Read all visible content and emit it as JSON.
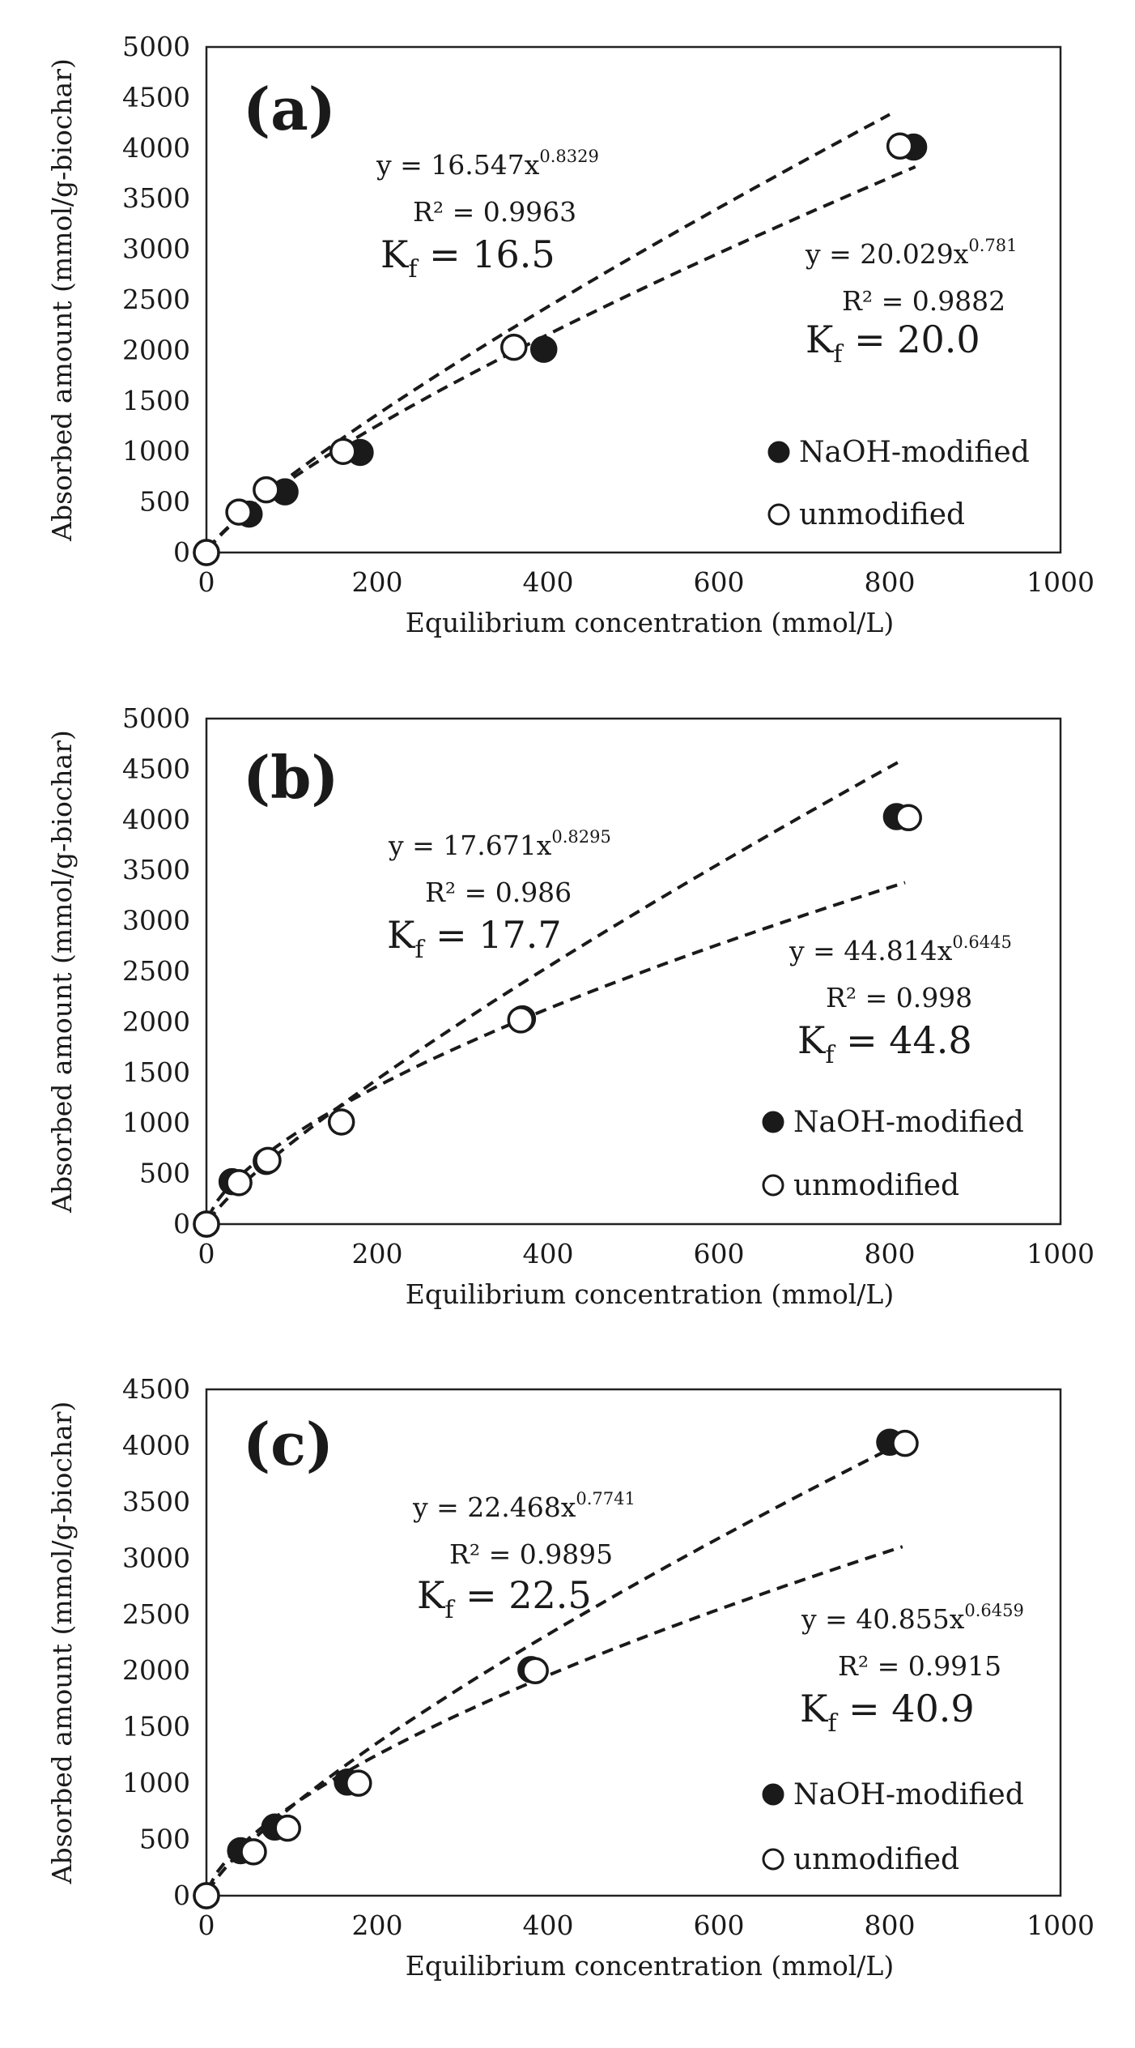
{
  "chart_data": [
    {
      "type": "scatter",
      "panel_label": "(a)",
      "xlabel": "Equilibrium concentration (mmol/L)",
      "ylabel": "Absorbed amount (mmol/g-biochar)",
      "xlim": [
        0,
        1000
      ],
      "ylim": [
        0,
        5000
      ],
      "x_ticks": [
        "0",
        "200",
        "400",
        "600",
        "800",
        "1000"
      ],
      "y_ticks": [
        "0",
        "500",
        "1000",
        "1500",
        "2000",
        "2500",
        "3000",
        "3500",
        "4000",
        "4500",
        "5000"
      ],
      "series": [
        {
          "name": "NaOH-modified",
          "marker": "filled-circle",
          "x": [
            0,
            50,
            92,
            180,
            395,
            828
          ],
          "y": [
            0,
            380,
            600,
            990,
            2010,
            4010
          ]
        },
        {
          "name": "unmodified",
          "marker": "open-circle",
          "x": [
            0,
            38,
            70,
            160,
            360,
            812
          ],
          "y": [
            0,
            400,
            620,
            1000,
            2030,
            4020
          ]
        }
      ],
      "fits": [
        {
          "series": "unmodified",
          "a": 16.547,
          "b": 0.8329,
          "x_range": [
            2,
            800
          ],
          "equation_prefix": "y = 16.547x",
          "exponent": "0.8329",
          "r2": "R² = 0.9963",
          "kf_value": "16.5"
        },
        {
          "series": "NaOH-modified",
          "a": 20.029,
          "b": 0.781,
          "x_range": [
            2,
            830
          ],
          "equation_prefix": "y = 20.029x",
          "exponent": "0.781",
          "r2": "R² = 0.9882",
          "kf_value": "20.0"
        }
      ],
      "legend_position": "bottom-right"
    },
    {
      "type": "scatter",
      "panel_label": "(b)",
      "xlabel": "Equilibrium concentration (mmol/L)",
      "ylabel": "Absorbed amount (mmol/g-biochar)",
      "xlim": [
        0,
        1000
      ],
      "ylim": [
        0,
        5000
      ],
      "x_ticks": [
        "0",
        "200",
        "400",
        "600",
        "800",
        "1000"
      ],
      "y_ticks": [
        "0",
        "500",
        "1000",
        "1500",
        "2000",
        "2500",
        "3000",
        "3500",
        "4000",
        "4500",
        "5000"
      ],
      "series": [
        {
          "name": "NaOH-modified",
          "marker": "filled-circle",
          "x": [
            0,
            30,
            70,
            370,
            808
          ],
          "y": [
            0,
            420,
            620,
            2030,
            4030
          ]
        },
        {
          "name": "unmodified",
          "marker": "open-circle",
          "x": [
            0,
            38,
            72,
            158,
            368,
            822
          ],
          "y": [
            0,
            410,
            630,
            1010,
            2020,
            4020
          ]
        }
      ],
      "fits": [
        {
          "series": "unmodified",
          "a": 17.671,
          "b": 0.8295,
          "x_range": [
            2,
            810
          ],
          "equation_prefix": "y = 17.671x",
          "exponent": "0.8295",
          "r2": "R² = 0.986",
          "kf_value": "17.7"
        },
        {
          "series": "NaOH-modified",
          "a": 44.814,
          "b": 0.6445,
          "x_range": [
            2,
            818
          ],
          "equation_prefix": "y = 44.814x",
          "exponent": "0.6445",
          "r2": "R² = 0.998",
          "kf_value": "44.8"
        }
      ],
      "legend_position": "bottom-right"
    },
    {
      "type": "scatter",
      "panel_label": "(c)",
      "xlabel": "Equilibrium concentration (mmol/L)",
      "ylabel": "Absorbed amount (mmol/g-biochar)",
      "xlim": [
        0,
        1000
      ],
      "ylim": [
        0,
        4500
      ],
      "x_ticks": [
        "0",
        "200",
        "400",
        "600",
        "800",
        "1000"
      ],
      "y_ticks": [
        "0",
        "500",
        "1000",
        "1500",
        "2000",
        "2500",
        "3000",
        "3500",
        "4000",
        "4500"
      ],
      "series": [
        {
          "name": "NaOH-modified",
          "marker": "filled-circle",
          "x": [
            0,
            40,
            80,
            165,
            380,
            800
          ],
          "y": [
            0,
            400,
            610,
            1010,
            2010,
            4030
          ]
        },
        {
          "name": "unmodified",
          "marker": "open-circle",
          "x": [
            0,
            55,
            95,
            178,
            385,
            818
          ],
          "y": [
            0,
            390,
            600,
            1000,
            2000,
            4020
          ]
        }
      ],
      "fits": [
        {
          "series": "unmodified",
          "a": 22.468,
          "b": 0.7741,
          "x_range": [
            2,
            815
          ],
          "equation_prefix": "y = 22.468x",
          "exponent": "0.7741",
          "r2": "R² = 0.9895",
          "kf_value": "22.5"
        },
        {
          "series": "NaOH-modified",
          "a": 40.855,
          "b": 0.6459,
          "x_range": [
            2,
            815
          ],
          "equation_prefix": "y = 40.855x",
          "exponent": "0.6459",
          "r2": "R² = 0.9915",
          "kf_value": "40.9"
        }
      ],
      "legend_position": "bottom-right"
    }
  ],
  "kf_symbol": "K",
  "kf_subscript": "f",
  "kf_equals": " = ",
  "colors": {
    "ink": "#1a1a1a",
    "background": "#ffffff",
    "plot_frame": "#222222"
  }
}
